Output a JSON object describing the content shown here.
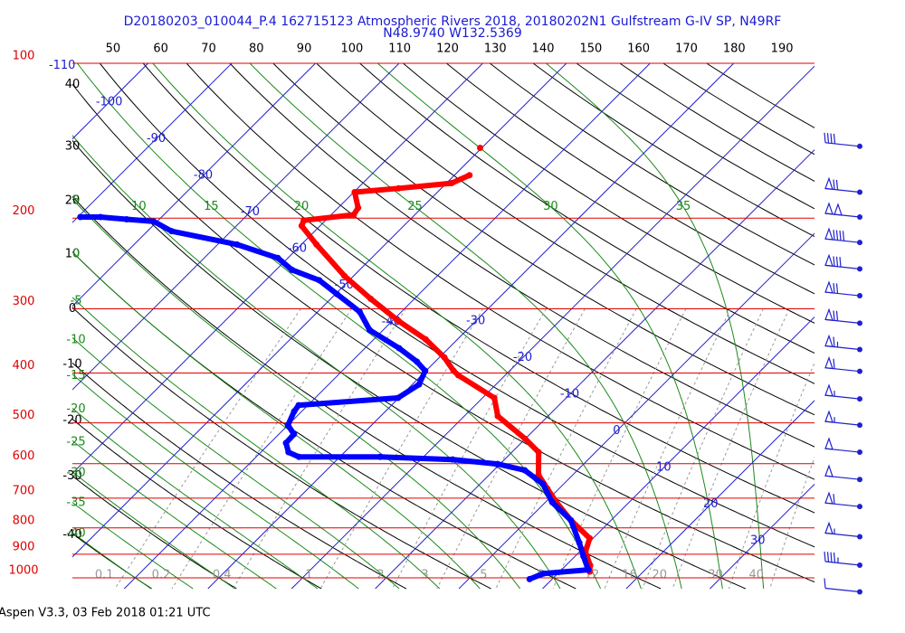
{
  "chart_data": {
    "type": "skewt",
    "title": "D20180203_010044_P.4 162715123 Atmospheric Rivers 2018, 20180202N1 Gulfstream G-IV SP, N49RF",
    "subtitle": "N48.9740 W132.5369",
    "footer": "Aspen V3.3, 03 Feb 2018  01:21 UTC",
    "ylim": [
      100,
      1050
    ],
    "log_y": true,
    "yticks": [
      100,
      200,
      300,
      400,
      500,
      600,
      700,
      800,
      900,
      1000
    ],
    "xlim": [
      -46.2,
      42.5
    ],
    "isotherms": [
      -110,
      -100,
      -90,
      -80,
      -70,
      -60,
      -50,
      -40,
      -30,
      -20,
      -10,
      0,
      10,
      20,
      30
    ],
    "dry_adiabats": [
      -40,
      -30,
      -20,
      -10,
      0,
      10,
      20,
      30,
      40
    ],
    "top_axis": {
      "xlim": [
        41.5,
        196.8
      ],
      "ticks": [
        50,
        60,
        70,
        80,
        90,
        100,
        110,
        120,
        130,
        140,
        150,
        160,
        170,
        180,
        190
      ]
    },
    "moist_adiabats": [
      -40,
      -35,
      -30,
      -25,
      -20,
      -15,
      -10,
      -5,
      0,
      5,
      10,
      15,
      20,
      25,
      30,
      35
    ],
    "mixing_ratios": [
      0.1,
      0.2,
      0.4,
      1,
      2,
      3,
      5,
      8,
      12,
      16,
      20,
      30,
      40
    ],
    "series": [
      {
        "color": "#ff0000",
        "pressure": [
          165,
          171,
          175,
          178,
          191,
          197,
          202,
          207,
          225,
          259,
          287,
          317,
          344,
          373,
          396,
          404,
          447,
          485,
          537,
          570,
          631,
          671,
          713,
          773,
          838,
          890,
          946,
          973
        ],
        "values": [
          -48.2,
          -49.4,
          -55.1,
          -59.9,
          -57.6,
          -57.3,
          -62.6,
          -62.2,
          -58.2,
          -51.1,
          -45.2,
          -39.2,
          -33.8,
          -29.4,
          -26.7,
          -25.6,
          -18.6,
          -16.0,
          -10.0,
          -6.8,
          -4.1,
          -1.4,
          1.3,
          5.2,
          9.6,
          10.7,
          12.9,
          13.6
        ]
      },
      {
        "color": "#0000ff",
        "pressure": [
          199,
          199,
          201,
          203,
          212,
          225,
          239,
          252,
          264,
          281,
          304,
          330,
          358,
          380,
          396,
          421,
          447,
          462,
          475,
          505,
          526,
          547,
          570,
          582,
          582,
          589,
          601,
          618,
          657,
          713,
          773,
          855,
          908,
          965,
          981,
          1006
        ],
        "values": [
          -89.7,
          -87.3,
          -83.9,
          -80.4,
          -77.1,
          -67.7,
          -61.2,
          -58.1,
          -53.6,
          -49.8,
          -45.0,
          -41.6,
          -35.9,
          -32.2,
          -30.1,
          -29.2,
          -30.1,
          -41.1,
          -40.9,
          -40.0,
          -38.2,
          -38.1,
          -36.7,
          -34.9,
          -25.2,
          -16.2,
          -10.3,
          -6.3,
          -2.5,
          0.8,
          5.2,
          8.9,
          11.0,
          13.2,
          8.3,
          7.3
        ]
      },
      {
        "color": "#ff0000",
        "pressure": [
          146
        ],
        "values": [
          -50.2
        ]
      }
    ],
    "winds": {
      "pressure": [
        145,
        178,
        199,
        223,
        251,
        283,
        320,
        360,
        397,
        449,
        505,
        570,
        644,
        727,
        832,
        945,
        1065
      ],
      "speed": [
        40,
        70,
        100,
        90,
        80,
        70,
        70,
        65,
        60,
        55,
        55,
        50,
        50,
        60,
        55,
        45,
        10
      ]
    }
  }
}
